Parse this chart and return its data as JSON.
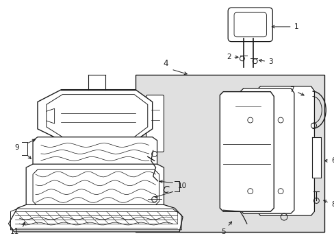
{
  "background_color": "#ffffff",
  "fig_width": 4.89,
  "fig_height": 3.6,
  "dpi": 100,
  "shaded_color": "#e0e0e0",
  "line_color": "#1a1a1a",
  "callout_font_size": 7.5
}
